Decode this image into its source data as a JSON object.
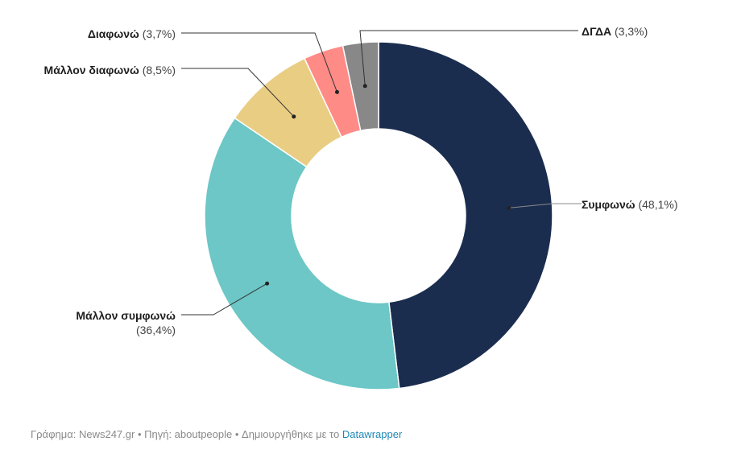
{
  "chart_data": {
    "type": "pie",
    "variant": "donut",
    "categories": [
      "Συμφωνώ",
      "Μάλλον συμφωνώ",
      "Μάλλον διαφωνώ",
      "Διαφωνώ",
      "ΔΓΔΑ"
    ],
    "values": [
      48.1,
      36.4,
      8.5,
      3.7,
      3.3
    ],
    "value_labels": [
      "(48,1%)",
      "(36,4%)",
      "(8,5%)",
      "(3,7%)",
      "(3,3%)"
    ],
    "colors": [
      "#1b2d4f",
      "#6cc7c6",
      "#e9cd83",
      "#ff8b87",
      "#888888"
    ]
  },
  "footer": {
    "text": "Γράφημα: News247.gr • Πηγή: aboutpeople • Δημιουργήθηκε με το ",
    "link": "Datawrapper"
  }
}
